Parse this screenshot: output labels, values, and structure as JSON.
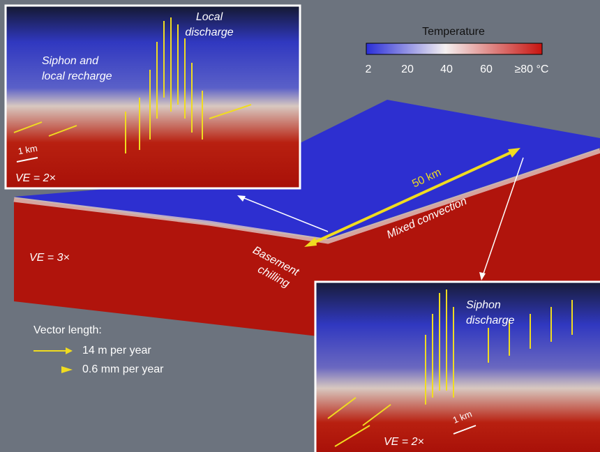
{
  "colorbar": {
    "title": "Temperature",
    "ticks": [
      "2",
      "20",
      "40",
      "60",
      "≥80 °C"
    ]
  },
  "main_view": {
    "scale_label": "50 km",
    "process_label": "Mixed convection",
    "chilling_label": [
      "Basement",
      "chilling"
    ],
    "exaggeration": "VE = 3×"
  },
  "inset_top": {
    "discharge_label": [
      "Local",
      "discharge"
    ],
    "recharge_label": [
      "Siphon and",
      "local recharge"
    ],
    "scale_label": "1 km",
    "exaggeration": "VE = 2×"
  },
  "inset_bottom": {
    "discharge_label": [
      "Siphon",
      "discharge"
    ],
    "scale_label": "1 km",
    "exaggeration": "VE = 2×"
  },
  "legend": {
    "title": "Vector length:",
    "entries": [
      "14 m per year",
      "0.6 mm per year"
    ]
  }
}
